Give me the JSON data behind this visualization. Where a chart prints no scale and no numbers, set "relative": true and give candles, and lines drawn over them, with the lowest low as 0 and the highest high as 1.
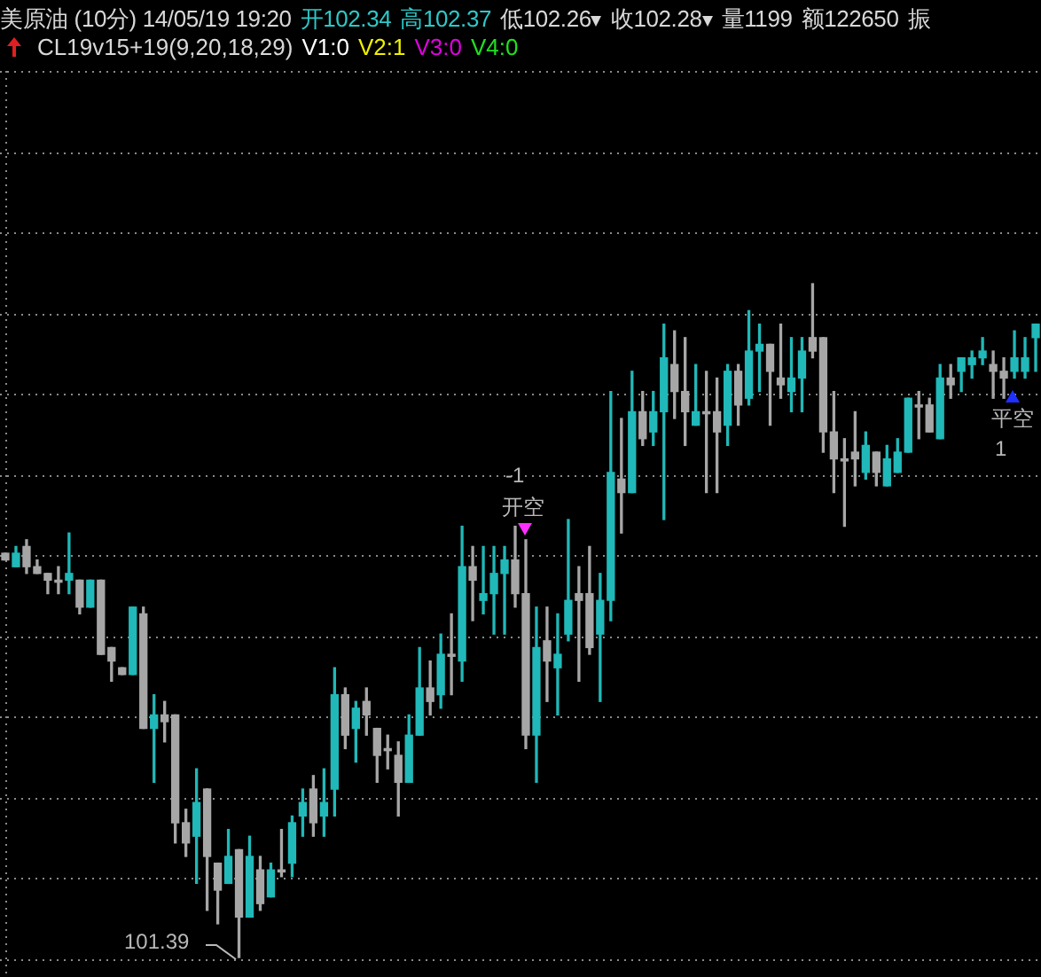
{
  "chart_data": {
    "type": "candlestick",
    "title": "美原油 (10分) 14/05/19 19:20",
    "relative": true,
    "grid": true,
    "tick_labels": false,
    "annotations": [
      "开102.34",
      "高102.37",
      "低102.26",
      "收102.28",
      "量1199",
      "额122650",
      "振",
      "CL19v15+19(9,20,18,29)",
      "V1:0",
      "V2:1",
      "V3:0",
      "V4:0",
      "-1",
      "开空",
      "平空",
      "1",
      "101.39"
    ],
    "categories": [
      null,
      null,
      null,
      null,
      null,
      null,
      null,
      null,
      null,
      null,
      null,
      null,
      null,
      null,
      null,
      null,
      null,
      null,
      null,
      null,
      null,
      null,
      null,
      null,
      null,
      null,
      null,
      null,
      null,
      null,
      null,
      null,
      null,
      null,
      null,
      null,
      null,
      null,
      null,
      null,
      null,
      null,
      null,
      null,
      null,
      null,
      null,
      null,
      null,
      null,
      null,
      null,
      null,
      null,
      null,
      null,
      null,
      null,
      null,
      null,
      null,
      null,
      null,
      null,
      null,
      null,
      null,
      null,
      null,
      null,
      null,
      null,
      null,
      null,
      null,
      null,
      null,
      null,
      null,
      null,
      null,
      null,
      null,
      null,
      null,
      null,
      null,
      null,
      null,
      null,
      null,
      null,
      null,
      null,
      null,
      null,
      null,
      null
    ],
    "ohlc": [
      [
        0.6,
        0.6,
        0.59,
        0.59
      ],
      [
        0.58,
        0.61,
        0.58,
        0.6
      ],
      [
        0.61,
        0.62,
        0.57,
        0.58
      ],
      [
        0.58,
        0.59,
        0.57,
        0.57
      ],
      [
        0.57,
        0.57,
        0.54,
        0.56
      ],
      [
        0.56,
        0.58,
        0.54,
        0.557
      ],
      [
        0.56,
        0.63,
        0.54,
        0.57
      ],
      [
        0.56,
        0.56,
        0.51,
        0.52
      ],
      [
        0.52,
        0.56,
        0.52,
        0.56
      ],
      [
        0.56,
        0.56,
        0.45,
        0.45
      ],
      [
        0.46,
        0.46,
        0.41,
        0.44
      ],
      [
        0.43,
        0.43,
        0.42,
        0.42
      ],
      [
        0.42,
        0.52,
        0.42,
        0.52
      ],
      [
        0.51,
        0.52,
        0.34,
        0.34
      ],
      [
        0.34,
        0.39,
        0.26,
        0.36
      ],
      [
        0.36,
        0.38,
        0.32,
        0.35
      ],
      [
        0.36,
        0.36,
        0.17,
        0.2
      ],
      [
        0.2,
        0.22,
        0.15,
        0.17
      ],
      [
        0.18,
        0.28,
        0.11,
        0.23
      ],
      [
        0.25,
        0.25,
        0.07,
        0.15
      ],
      [
        0.14,
        0.14,
        0.05,
        0.1
      ],
      [
        0.11,
        0.19,
        0.11,
        0.15
      ],
      [
        0.16,
        0.16,
        0,
        0.06
      ],
      [
        0.06,
        0.18,
        0.06,
        0.15
      ],
      [
        0.13,
        0.15,
        0.07,
        0.08
      ],
      [
        0.09,
        0.14,
        0.09,
        0.13
      ],
      [
        0.13,
        0.19,
        0.12,
        0.127
      ],
      [
        0.14,
        0.21,
        0.12,
        0.2
      ],
      [
        0.21,
        0.25,
        0.18,
        0.23
      ],
      [
        0.25,
        0.27,
        0.18,
        0.2
      ],
      [
        0.21,
        0.28,
        0.18,
        0.23
      ],
      [
        0.25,
        0.43,
        0.21,
        0.39
      ],
      [
        0.39,
        0.4,
        0.31,
        0.33
      ],
      [
        0.34,
        0.38,
        0.29,
        0.37
      ],
      [
        0.38,
        0.4,
        0.33,
        0.36
      ],
      [
        0.34,
        0.34,
        0.26,
        0.3
      ],
      [
        0.31,
        0.33,
        0.28,
        0.307
      ],
      [
        0.3,
        0.32,
        0.21,
        0.26
      ],
      [
        0.26,
        0.36,
        0.26,
        0.33
      ],
      [
        0.33,
        0.46,
        0.33,
        0.4
      ],
      [
        0.4,
        0.44,
        0.36,
        0.38
      ],
      [
        0.39,
        0.48,
        0.37,
        0.45
      ],
      [
        0.45,
        0.51,
        0.39,
        0.447
      ],
      [
        0.44,
        0.64,
        0.41,
        0.58
      ],
      [
        0.58,
        0.61,
        0.5,
        0.56
      ],
      [
        0.53,
        0.61,
        0.51,
        0.54
      ],
      [
        0.54,
        0.61,
        0.48,
        0.57
      ],
      [
        0.57,
        0.61,
        0.48,
        0.59
      ],
      [
        0.59,
        0.64,
        0.52,
        0.54
      ],
      [
        0.54,
        0.62,
        0.31,
        0.33
      ],
      [
        0.33,
        0.52,
        0.26,
        0.46
      ],
      [
        0.47,
        0.52,
        0.38,
        0.44
      ],
      [
        0.43,
        0.51,
        0.36,
        0.45
      ],
      [
        0.48,
        0.65,
        0.47,
        0.53
      ],
      [
        0.54,
        0.58,
        0.41,
        0.53
      ],
      [
        0.54,
        0.61,
        0.45,
        0.46
      ],
      [
        0.48,
        0.57,
        0.38,
        0.53
      ],
      [
        0.53,
        0.84,
        0.5,
        0.72
      ],
      [
        0.71,
        0.8,
        0.63,
        0.69
      ],
      [
        0.69,
        0.87,
        0.69,
        0.81
      ],
      [
        0.81,
        0.84,
        0.76,
        0.77
      ],
      [
        0.78,
        0.84,
        0.76,
        0.81
      ],
      [
        0.81,
        0.94,
        0.65,
        0.89
      ],
      [
        0.88,
        0.93,
        0.8,
        0.84
      ],
      [
        0.84,
        0.92,
        0.76,
        0.81
      ],
      [
        0.79,
        0.88,
        0.79,
        0.81
      ],
      [
        0.81,
        0.87,
        0.69,
        0.807
      ],
      [
        0.81,
        0.86,
        0.69,
        0.78
      ],
      [
        0.79,
        0.88,
        0.76,
        0.87
      ],
      [
        0.87,
        0.88,
        0.79,
        0.82
      ],
      [
        0.83,
        0.96,
        0.82,
        0.9
      ],
      [
        0.9,
        0.94,
        0.84,
        0.91
      ],
      [
        0.91,
        0.91,
        0.79,
        0.87
      ],
      [
        0.86,
        0.94,
        0.83,
        0.85
      ],
      [
        0.84,
        0.92,
        0.81,
        0.86
      ],
      [
        0.86,
        0.92,
        0.81,
        0.9
      ],
      [
        0.92,
        1,
        0.89,
        0.9
      ],
      [
        0.92,
        0.92,
        0.75,
        0.78
      ],
      [
        0.78,
        0.84,
        0.69,
        0.74
      ],
      [
        0.74,
        0.77,
        0.64,
        0.737
      ],
      [
        0.75,
        0.81,
        0.7,
        0.74
      ],
      [
        0.72,
        0.78,
        0.71,
        0.76
      ],
      [
        0.75,
        0.75,
        0.7,
        0.72
      ],
      [
        0.7,
        0.76,
        0.7,
        0.74
      ],
      [
        0.72,
        0.77,
        0.72,
        0.75
      ],
      [
        0.75,
        0.83,
        0.75,
        0.83
      ],
      [
        0.82,
        0.84,
        0.77,
        0.817
      ],
      [
        0.82,
        0.83,
        0.78,
        0.78
      ],
      [
        0.77,
        0.88,
        0.77,
        0.86
      ],
      [
        0.86,
        0.88,
        0.83,
        0.85
      ],
      [
        0.87,
        0.89,
        0.84,
        0.89
      ],
      [
        0.88,
        0.9,
        0.86,
        0.89
      ],
      [
        0.89,
        0.92,
        0.88,
        0.9
      ],
      [
        0.88,
        0.9,
        0.83,
        0.87
      ],
      [
        0.87,
        0.89,
        0.83,
        0.86
      ],
      [
        0.87,
        0.93,
        0.86,
        0.89
      ],
      [
        0.87,
        0.92,
        0.86,
        0.89
      ],
      [
        0.92,
        0.94,
        0.87,
        0.94
      ]
    ],
    "colors": [
      "#a6a6a6",
      "#20b8b8",
      "#a6a6a6",
      "#a6a6a6",
      "#a6a6a6",
      "#a6a6a6",
      "#20b8b8",
      "#a6a6a6",
      "#20b8b8",
      "#a6a6a6",
      "#a6a6a6",
      "#a6a6a6",
      "#20b8b8",
      "#a6a6a6",
      "#20b8b8",
      "#a6a6a6",
      "#a6a6a6",
      "#a6a6a6",
      "#20b8b8",
      "#a6a6a6",
      "#a6a6a6",
      "#20b8b8",
      "#a6a6a6",
      "#20b8b8",
      "#a6a6a6",
      "#20b8b8",
      "#a6a6a6",
      "#20b8b8",
      "#20b8b8",
      "#a6a6a6",
      "#20b8b8",
      "#20b8b8",
      "#a6a6a6",
      "#20b8b8",
      "#a6a6a6",
      "#a6a6a6",
      "#a6a6a6",
      "#a6a6a6",
      "#20b8b8",
      "#20b8b8",
      "#a6a6a6",
      "#20b8b8",
      "#a6a6a6",
      "#20b8b8",
      "#a6a6a6",
      "#20b8b8",
      "#20b8b8",
      "#20b8b8",
      "#a6a6a6",
      "#a6a6a6",
      "#20b8b8",
      "#a6a6a6",
      "#20b8b8",
      "#20b8b8",
      "#a6a6a6",
      "#a6a6a6",
      "#20b8b8",
      "#20b8b8",
      "#a6a6a6",
      "#20b8b8",
      "#a6a6a6",
      "#20b8b8",
      "#20b8b8",
      "#a6a6a6",
      "#a6a6a6",
      "#20b8b8",
      "#a6a6a6",
      "#a6a6a6",
      "#20b8b8",
      "#a6a6a6",
      "#20b8b8",
      "#20b8b8",
      "#a6a6a6",
      "#a6a6a6",
      "#20b8b8",
      "#20b8b8",
      "#a6a6a6",
      "#a6a6a6",
      "#a6a6a6",
      "#a6a6a6",
      "#a6a6a6",
      "#20b8b8",
      "#a6a6a6",
      "#20b8b8",
      "#20b8b8",
      "#20b8b8",
      "#a6a6a6",
      "#a6a6a6",
      "#20b8b8",
      "#a6a6a6",
      "#20b8b8",
      "#20b8b8",
      "#20b8b8",
      "#a6a6a6",
      "#a6a6a6",
      "#20b8b8",
      "#20b8b8",
      "#20b8b8"
    ]
  }
}
